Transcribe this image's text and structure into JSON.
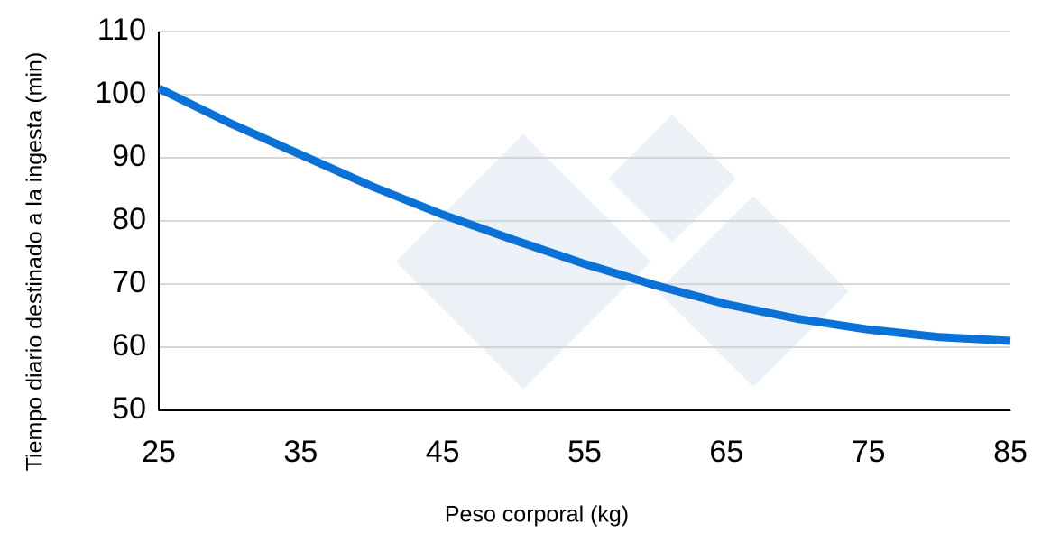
{
  "chart_data": {
    "type": "line",
    "x_label": "Peso corporal (kg)",
    "y_label": "Tiempo diario destinado a la ingesta (min)",
    "x": [
      25,
      30,
      35,
      40,
      45,
      50,
      55,
      60,
      65,
      70,
      75,
      80,
      85
    ],
    "series": [
      {
        "color": "#0a72d6",
        "values": [
          101,
          95.5,
          90.5,
          85.5,
          81,
          77,
          73.2,
          69.8,
          66.8,
          64.5,
          62.8,
          61.6,
          61
        ]
      }
    ],
    "xlim": [
      25,
      85
    ],
    "xticks": [
      25,
      35,
      45,
      55,
      65,
      75,
      85
    ],
    "ylim": [
      50,
      110
    ],
    "yticks": [
      50,
      60,
      70,
      80,
      90,
      100,
      110
    ],
    "grid": true
  }
}
